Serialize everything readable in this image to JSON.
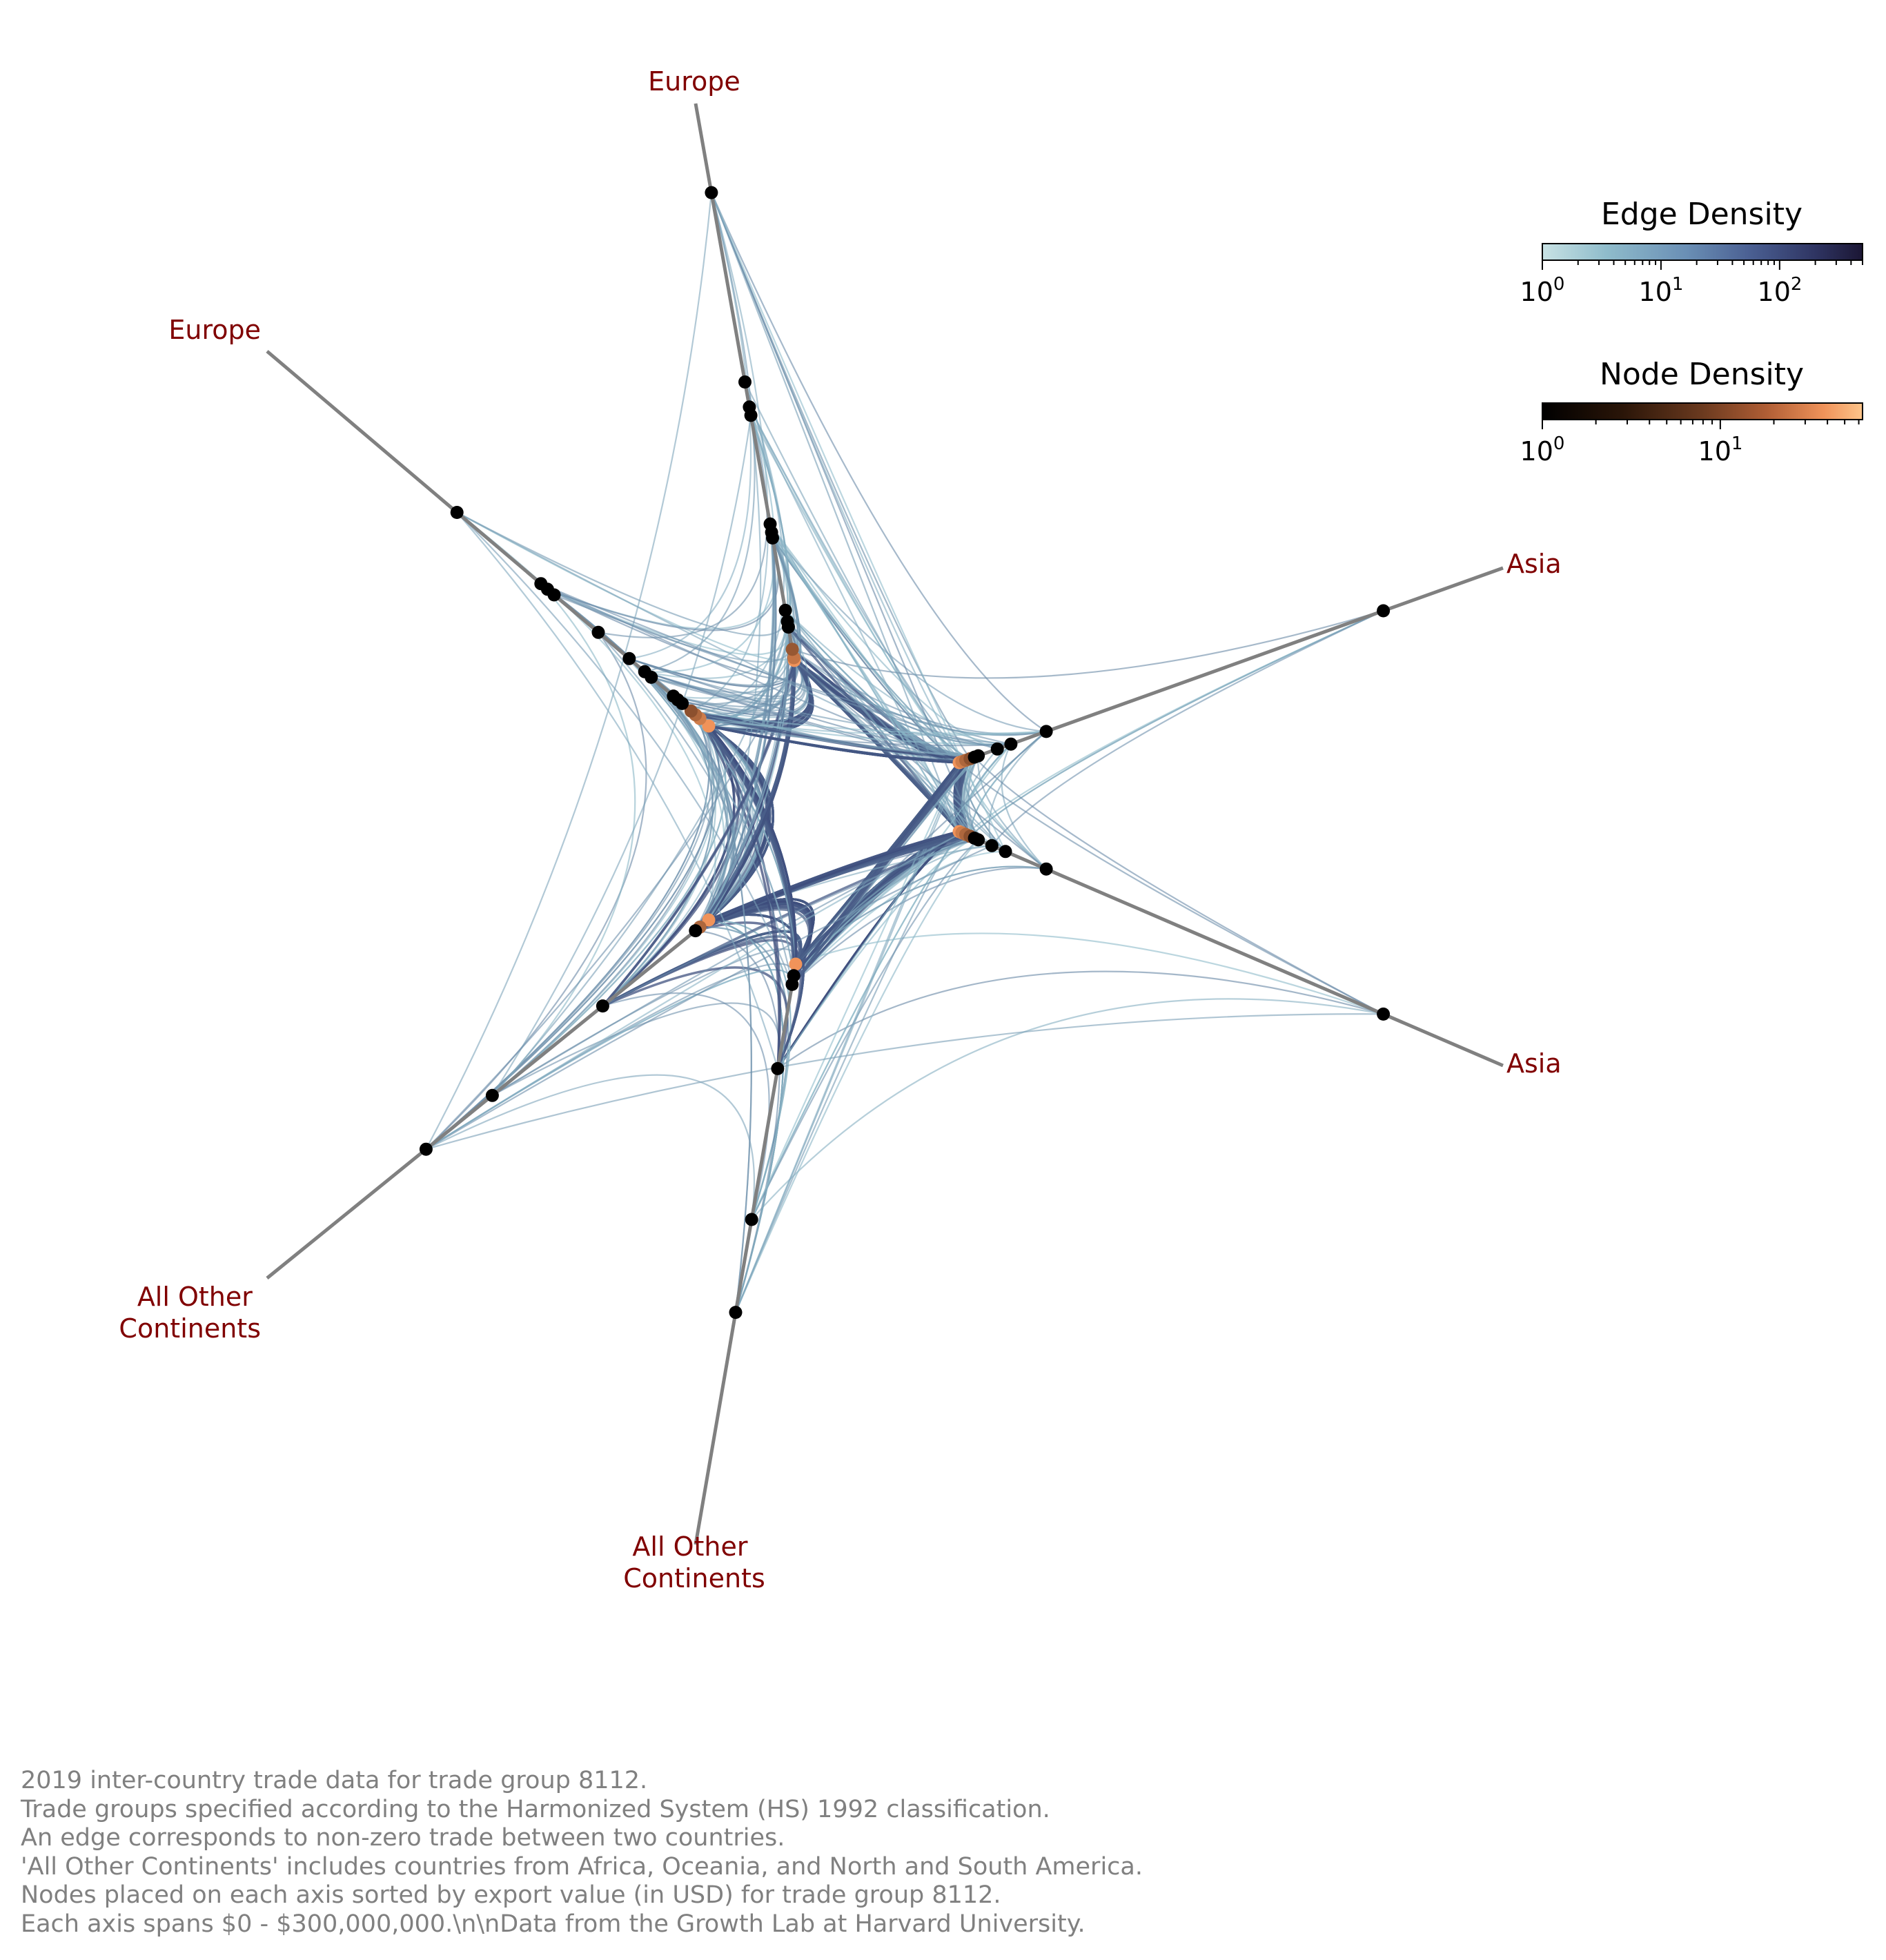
{
  "axes": [
    {
      "label": [
        "Europe"
      ]
    },
    {
      "label": [
        "Asia"
      ]
    },
    {
      "label": [
        "Asia"
      ]
    },
    {
      "label": [
        "All Other",
        "Continents"
      ]
    },
    {
      "label": [
        "All Other",
        "Continents"
      ]
    },
    {
      "label": [
        "Europe"
      ]
    }
  ],
  "colorbars": {
    "edge": {
      "title": "Edge Density",
      "colormap": [
        "#c8e2e4",
        "#8fbccb",
        "#6a8fb5",
        "#4a5f92",
        "#2f3563",
        "#1b1634"
      ],
      "ticks": [
        {
          "base": "10",
          "exp": "0"
        },
        {
          "base": "10",
          "exp": "1"
        },
        {
          "base": "10",
          "exp": "2"
        }
      ]
    },
    "node": {
      "title": "Node Density",
      "colormap": [
        "#000000",
        "#2a1508",
        "#6b3a1f",
        "#b05e35",
        "#f0935a",
        "#fdc48a"
      ],
      "ticks": [
        {
          "base": "10",
          "exp": "0"
        },
        {
          "base": "10",
          "exp": "1"
        }
      ]
    }
  },
  "colors": {
    "axis_line": "#808080",
    "axis_label": "#800000",
    "edge_light": "#8fbccb",
    "edge_dark": "#3b4a7a",
    "node": "#000000",
    "node_hot": "#f0935a",
    "caption": "#808080"
  },
  "caption": [
    "2019 inter-country trade data for trade group 8112.",
    "Trade groups specified according to the Harmonized System (HS) 1992 classification.",
    "An edge corresponds to non-zero trade between two countries.",
    "'All Other Continents' includes countries from Africa, Oceania, and North and South America.",
    "Nodes placed on each axis sorted by export value (in USD) for trade group 8112.",
    "Each axis spans $0 - $300,000,000.\\n\\nData from the Growth Lab at Harvard University."
  ]
}
